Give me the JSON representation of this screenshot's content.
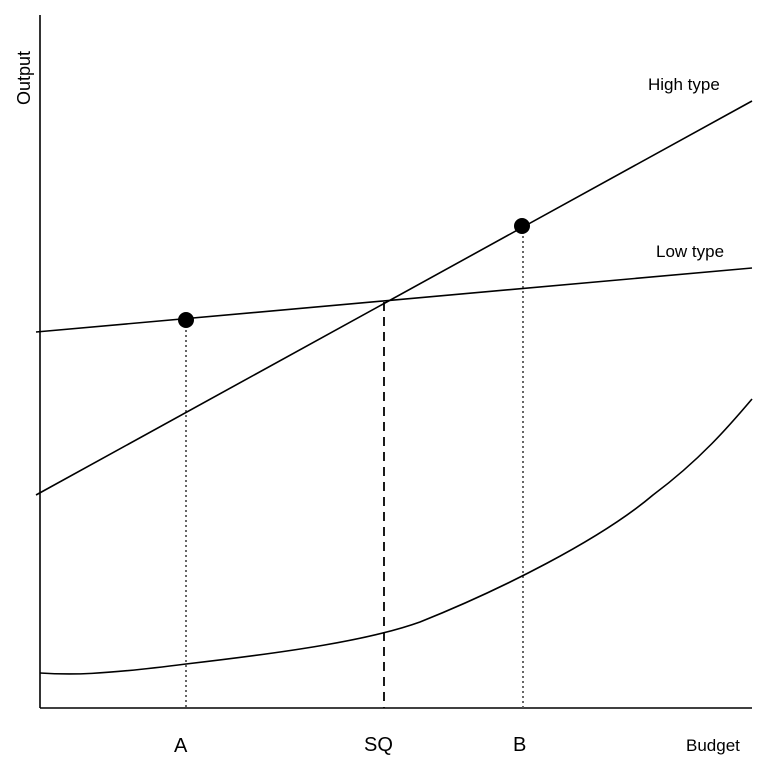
{
  "diagram": {
    "y_axis_label": "Output",
    "x_axis_label": "Budget",
    "curves": {
      "high": {
        "label": "High type"
      },
      "low": {
        "label": "Low type"
      },
      "bottom": {
        "label": ""
      }
    },
    "x_ticks": {
      "a": "A",
      "sq": "SQ",
      "b": "B"
    },
    "markers": {
      "a": {
        "on_curve": "Low type",
        "at_tick": "A"
      },
      "b": {
        "on_curve": "High type",
        "at_tick": "B"
      }
    },
    "guide_lines": {
      "a": {
        "style": "dotted",
        "at_tick": "A"
      },
      "sq": {
        "style": "dashed",
        "at_tick": "SQ"
      },
      "b": {
        "style": "dotted",
        "at_tick": "B"
      }
    },
    "colors": {
      "ink": "#000000",
      "guide": "#555555",
      "background": "#ffffff"
    }
  }
}
